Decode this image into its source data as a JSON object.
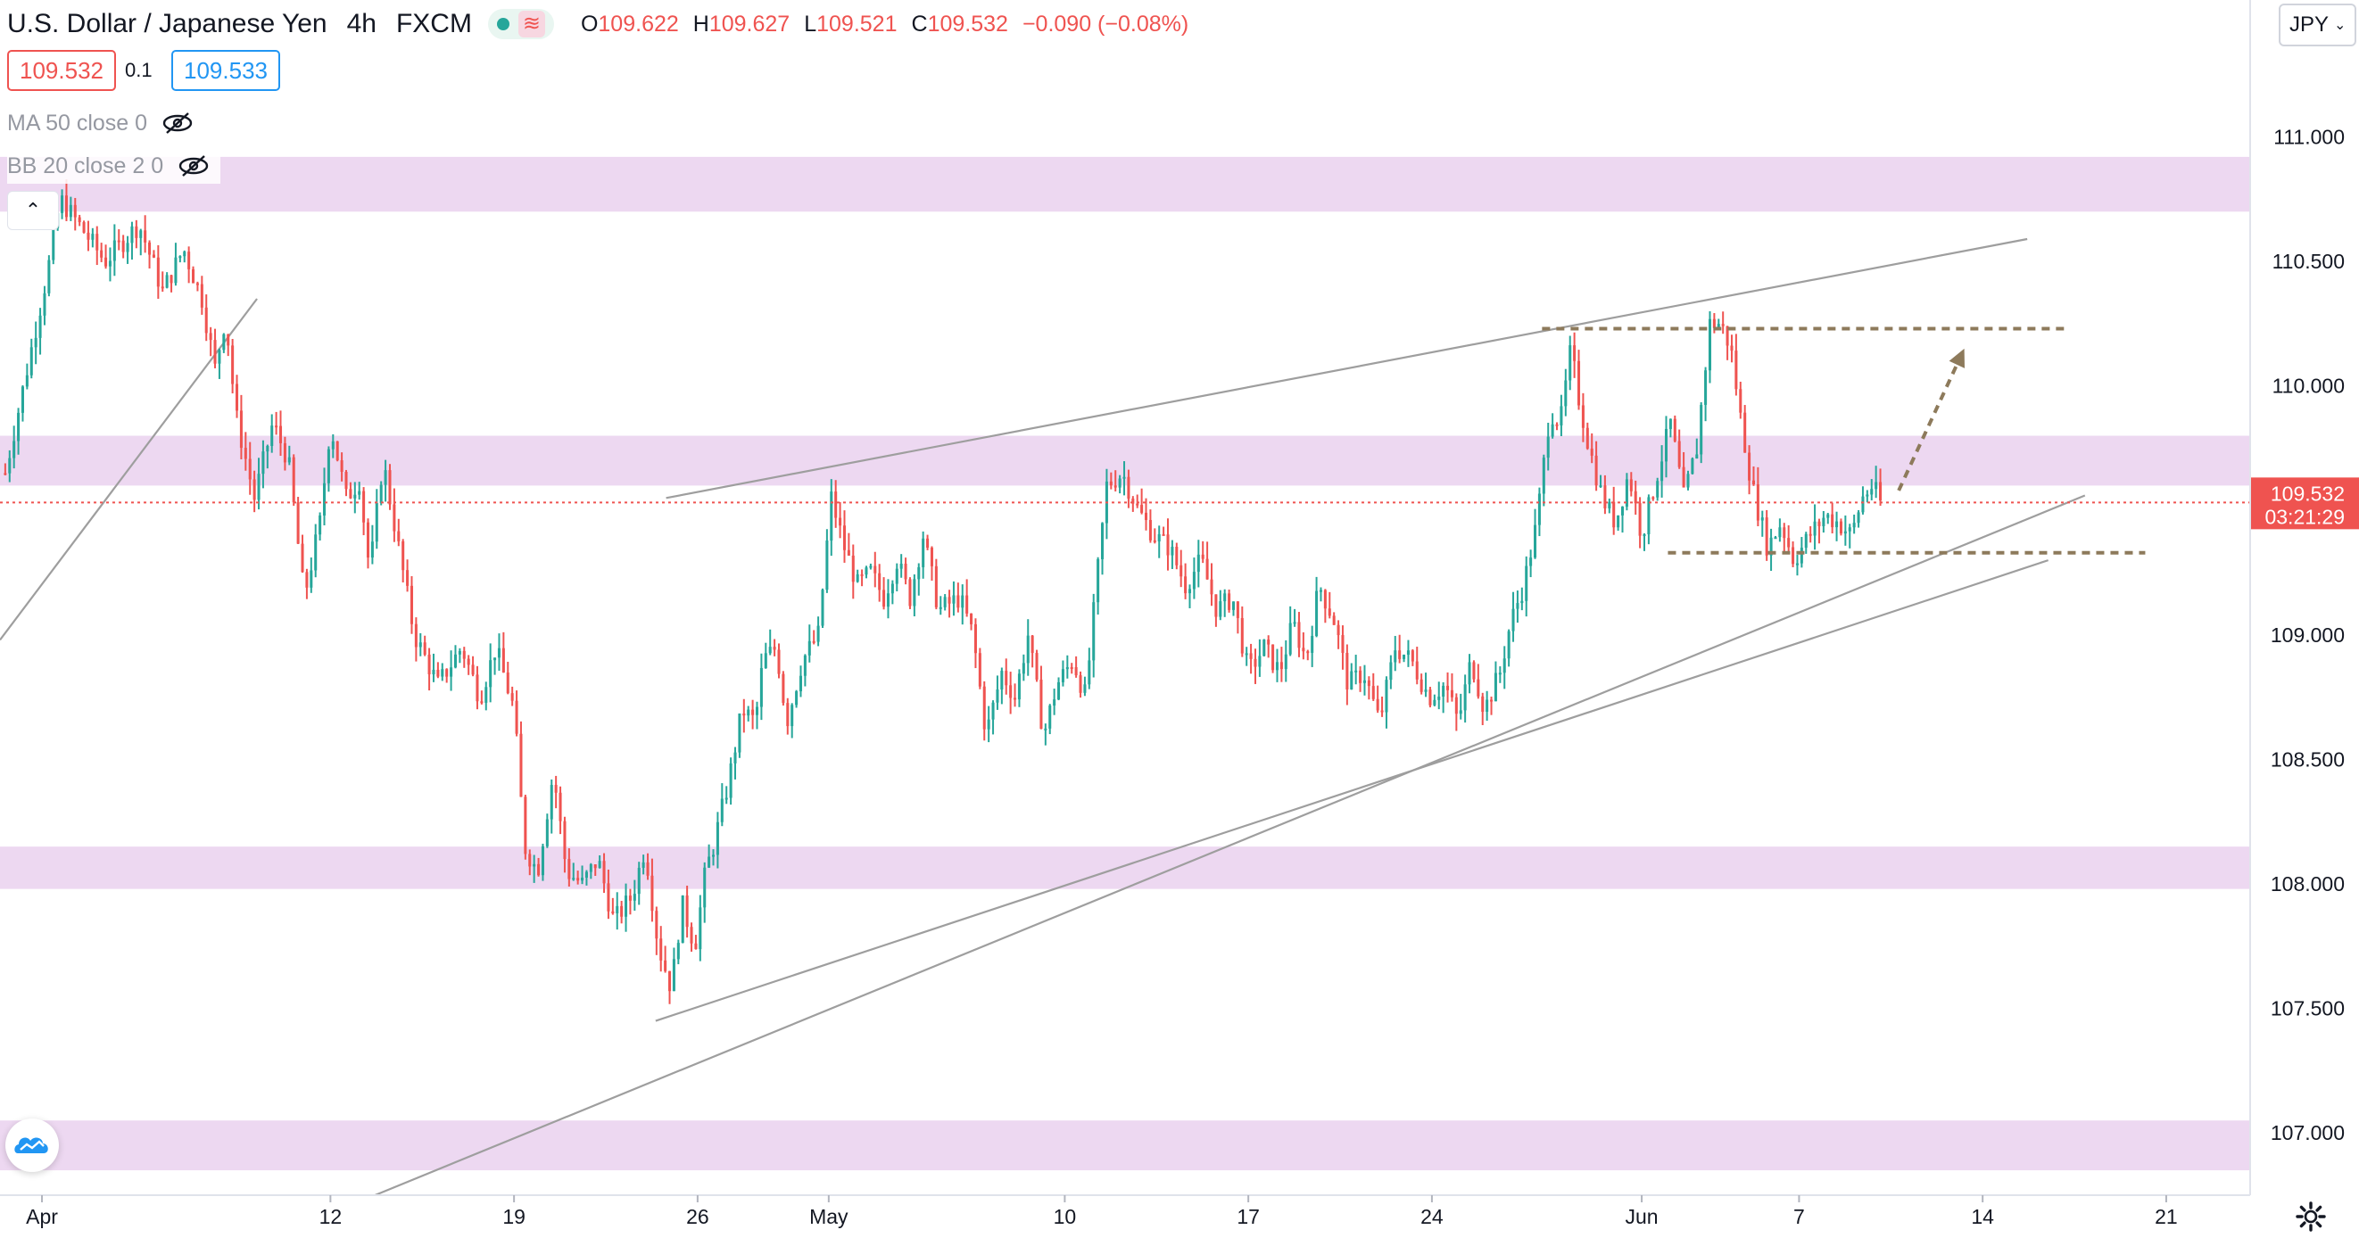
{
  "header": {
    "symbol_name": "U.S. Dollar / Japanese Yen",
    "interval": "4h",
    "exchange": "FXCM",
    "ohlc": {
      "o_label": "O",
      "o": "109.622",
      "h_label": "H",
      "h": "109.627",
      "l_label": "L",
      "l": "109.521",
      "c_label": "C",
      "c": "109.532",
      "change": "−0.090 (−0.08%)"
    }
  },
  "quote": {
    "bid": "109.532",
    "spread": "0.1",
    "ask": "109.533"
  },
  "indicators": [
    {
      "label": "MA 50 close 0"
    },
    {
      "label": "BB 20 close 2 0"
    }
  ],
  "currency_button": "JPY",
  "colors": {
    "up": "#26a69a",
    "down": "#ef5350",
    "zone": "#e1bee7",
    "trendline": "#9e9e9e",
    "annotation": "#8d7a5b"
  },
  "chart_data": {
    "type": "candlestick",
    "y_axis": {
      "range": [
        106.75,
        111.55
      ],
      "ticks": [
        "107.000",
        "107.500",
        "108.000",
        "108.500",
        "109.000",
        "109.500",
        "110.000",
        "110.500",
        "111.000"
      ]
    },
    "x_axis": {
      "ticks": [
        {
          "label": "Apr",
          "day": 0
        },
        {
          "label": "12",
          "day": 11
        },
        {
          "label": "19",
          "day": 18
        },
        {
          "label": "26",
          "day": 25
        },
        {
          "label": "May",
          "day": 30
        },
        {
          "label": "10",
          "day": 39
        },
        {
          "label": "17",
          "day": 46
        },
        {
          "label": "24",
          "day": 53
        },
        {
          "label": "Jun",
          "day": 61
        },
        {
          "label": "7",
          "day": 67
        },
        {
          "label": "14",
          "day": 74
        },
        {
          "label": "21",
          "day": 81
        }
      ],
      "day_range": [
        -1.6,
        84.2
      ]
    },
    "current_price": {
      "value": 109.532,
      "label": "109.532",
      "countdown": "03:21:29"
    },
    "anchor_points": [
      [
        -1.4,
        109.65
      ],
      [
        0.2,
        110.45
      ],
      [
        0.7,
        110.75
      ],
      [
        1.6,
        110.62
      ],
      [
        2.4,
        110.5
      ],
      [
        3.7,
        110.65
      ],
      [
        4.6,
        110.38
      ],
      [
        5.4,
        110.55
      ],
      [
        6.1,
        110.35
      ],
      [
        6.6,
        110.07
      ],
      [
        7.0,
        110.28
      ],
      [
        7.4,
        109.88
      ],
      [
        8.1,
        109.55
      ],
      [
        8.8,
        109.85
      ],
      [
        9.4,
        109.7
      ],
      [
        10.0,
        109.15
      ],
      [
        10.6,
        109.45
      ],
      [
        11.0,
        109.85
      ],
      [
        11.6,
        109.55
      ],
      [
        12.1,
        109.62
      ],
      [
        12.5,
        109.25
      ],
      [
        13.0,
        109.7
      ],
      [
        13.6,
        109.35
      ],
      [
        14.2,
        109.0
      ],
      [
        15.1,
        108.8
      ],
      [
        16.0,
        108.95
      ],
      [
        16.7,
        108.75
      ],
      [
        17.3,
        108.95
      ],
      [
        18.0,
        108.7
      ],
      [
        18.4,
        108.15
      ],
      [
        18.9,
        108.05
      ],
      [
        19.5,
        108.45
      ],
      [
        20.0,
        108.05
      ],
      [
        20.6,
        108.0
      ],
      [
        21.2,
        108.1
      ],
      [
        21.8,
        107.85
      ],
      [
        22.5,
        107.95
      ],
      [
        23.0,
        108.15
      ],
      [
        23.5,
        107.75
      ],
      [
        24.0,
        107.58
      ],
      [
        24.4,
        107.92
      ],
      [
        24.9,
        107.75
      ],
      [
        25.3,
        108.05
      ],
      [
        25.6,
        108.15
      ],
      [
        26.2,
        108.42
      ],
      [
        26.7,
        108.7
      ],
      [
        27.2,
        108.65
      ],
      [
        27.5,
        108.9
      ],
      [
        28.0,
        108.95
      ],
      [
        28.4,
        108.65
      ],
      [
        29.0,
        108.9
      ],
      [
        29.6,
        109.0
      ],
      [
        30.1,
        109.55
      ],
      [
        30.6,
        109.35
      ],
      [
        31.1,
        109.2
      ],
      [
        31.6,
        109.25
      ],
      [
        32.1,
        109.15
      ],
      [
        32.6,
        109.3
      ],
      [
        33.1,
        109.15
      ],
      [
        33.6,
        109.4
      ],
      [
        34.2,
        109.1
      ],
      [
        35.0,
        109.15
      ],
      [
        35.5,
        109.0
      ],
      [
        36.0,
        108.6
      ],
      [
        36.6,
        108.85
      ],
      [
        37.1,
        108.75
      ],
      [
        37.6,
        109.0
      ],
      [
        38.2,
        108.6
      ],
      [
        38.7,
        108.8
      ],
      [
        39.3,
        108.9
      ],
      [
        39.8,
        108.75
      ],
      [
        40.2,
        109.2
      ],
      [
        40.6,
        109.6
      ],
      [
        41.2,
        109.65
      ],
      [
        41.8,
        109.5
      ],
      [
        42.4,
        109.4
      ],
      [
        43.0,
        109.35
      ],
      [
        43.6,
        109.2
      ],
      [
        44.2,
        109.3
      ],
      [
        44.8,
        109.1
      ],
      [
        45.4,
        109.15
      ],
      [
        46.0,
        108.85
      ],
      [
        46.6,
        108.95
      ],
      [
        47.2,
        108.85
      ],
      [
        47.7,
        109.05
      ],
      [
        48.2,
        108.9
      ],
      [
        48.7,
        109.2
      ],
      [
        49.3,
        109.05
      ],
      [
        49.8,
        108.8
      ],
      [
        50.4,
        108.85
      ],
      [
        51.0,
        108.65
      ],
      [
        51.6,
        108.95
      ],
      [
        52.2,
        108.9
      ],
      [
        52.9,
        108.75
      ],
      [
        53.5,
        108.8
      ],
      [
        54.0,
        108.65
      ],
      [
        54.5,
        108.9
      ],
      [
        55.0,
        108.7
      ],
      [
        55.6,
        108.85
      ],
      [
        56.0,
        109.05
      ],
      [
        56.5,
        109.2
      ],
      [
        57.0,
        109.45
      ],
      [
        57.5,
        109.9
      ],
      [
        57.9,
        109.85
      ],
      [
        58.3,
        110.15
      ],
      [
        58.6,
        109.95
      ],
      [
        59.0,
        109.75
      ],
      [
        59.5,
        109.55
      ],
      [
        60.0,
        109.45
      ],
      [
        60.5,
        109.65
      ],
      [
        61.0,
        109.4
      ],
      [
        61.6,
        109.65
      ],
      [
        62.1,
        109.85
      ],
      [
        62.6,
        109.55
      ],
      [
        63.1,
        109.75
      ],
      [
        63.6,
        110.25
      ],
      [
        64.0,
        110.25
      ],
      [
        64.4,
        110.15
      ],
      [
        64.8,
        109.85
      ],
      [
        65.2,
        109.6
      ],
      [
        65.8,
        109.35
      ],
      [
        66.3,
        109.45
      ],
      [
        66.8,
        109.3
      ],
      [
        67.4,
        109.4
      ],
      [
        68.0,
        109.48
      ],
      [
        68.5,
        109.45
      ],
      [
        69.0,
        109.4
      ],
      [
        69.4,
        109.55
      ],
      [
        69.8,
        109.6
      ],
      [
        70.1,
        109.532
      ]
    ],
    "zones": [
      {
        "low": 110.7,
        "high": 110.92
      },
      {
        "low": 109.6,
        "high": 109.8
      },
      {
        "low": 107.98,
        "high": 108.15
      },
      {
        "low": 106.85,
        "high": 107.05
      }
    ],
    "trendlines": [
      {
        "from": [
          -1.6,
          108.98
        ],
        "to": [
          8.2,
          110.35
        ]
      },
      {
        "from": [
          23.8,
          109.55
        ],
        "to": [
          75.7,
          110.59
        ]
      },
      {
        "from": [
          23.4,
          107.45
        ],
        "to": [
          76.5,
          109.3
        ]
      },
      {
        "from": [
          12.7,
          106.75
        ],
        "to": [
          77.9,
          109.56
        ]
      }
    ],
    "annotations": {
      "resistance": {
        "from": [
          57.2,
          110.23
        ],
        "to": [
          77.1,
          110.23
        ]
      },
      "support": {
        "from": [
          62.0,
          109.33
        ],
        "to": [
          80.2,
          109.33
        ]
      },
      "projection": {
        "from": [
          70.8,
          109.58
        ],
        "to": [
          73.3,
          110.15
        ]
      }
    }
  }
}
